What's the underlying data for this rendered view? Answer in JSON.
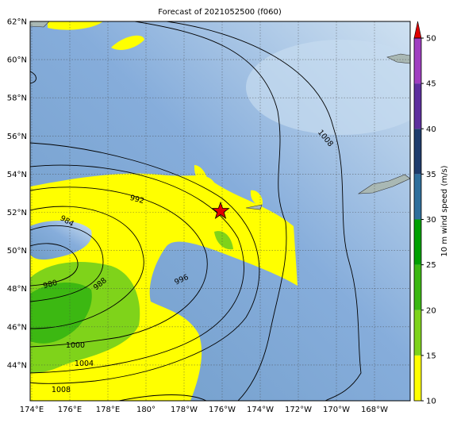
{
  "title": "Forecast of 2021052500 (f060)",
  "lat_labels": [
    "62°N",
    "60°N",
    "58°N",
    "56°N",
    "54°N",
    "52°N",
    "50°N",
    "48°N",
    "46°N",
    "44°N"
  ],
  "lon_labels": [
    "174°E",
    "176°E",
    "178°E",
    "180°",
    "178°W",
    "176°W",
    "174°W",
    "172°W",
    "170°W",
    "168°W"
  ],
  "contour_labels": [
    "992",
    "984",
    "980",
    "988",
    "996",
    "1000",
    "1004",
    "1008",
    "1008"
  ],
  "colorbar": {
    "label": "10 m wind speed (m/s)",
    "lim": [
      10,
      50
    ],
    "ticks": [
      10,
      15,
      20,
      25,
      30,
      35,
      40,
      45,
      50
    ],
    "colors": [
      "#ffff00",
      "#7fd31a",
      "#3cb812",
      "#00a000",
      "#2f6f9c",
      "#1f3c6c",
      "#5e2f9e",
      "#a03ec0"
    ],
    "extend_color": "#e00000"
  }
}
